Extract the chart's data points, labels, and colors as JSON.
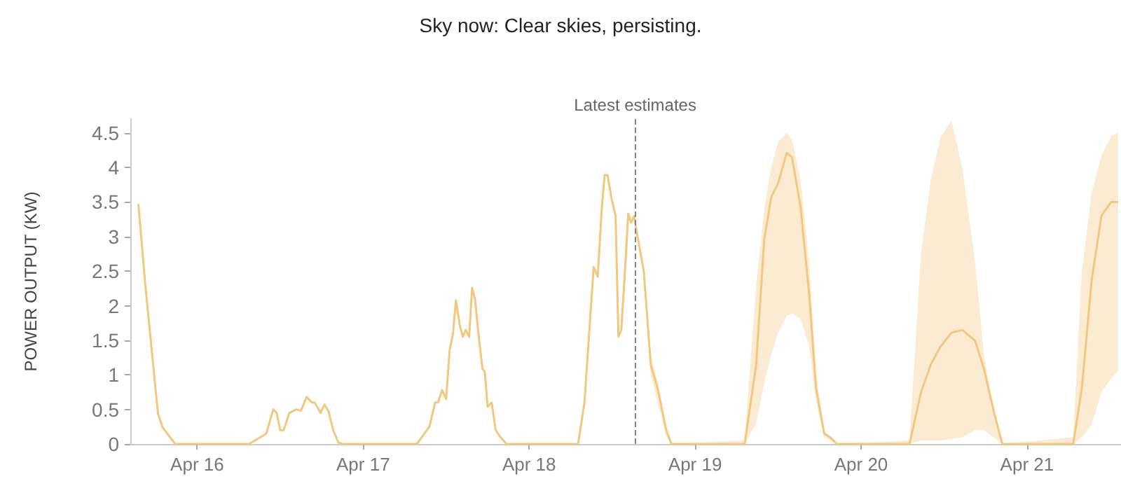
{
  "chart_data": {
    "type": "line",
    "title": "Sky now: Clear skies, persisting.",
    "ylabel": "POWER OUTPUT (KW)",
    "xlim": [
      "--04-15T14:20",
      "--04-21T13:35"
    ],
    "xticks": [
      {
        "value": "--04-16",
        "label": "Apr 16"
      },
      {
        "value": "--04-17",
        "label": "Apr 17"
      },
      {
        "value": "--04-18",
        "label": "Apr 18"
      },
      {
        "value": "--04-19",
        "label": "Apr 19"
      },
      {
        "value": "--04-20",
        "label": "Apr 20"
      },
      {
        "value": "--04-21",
        "label": "Apr 21"
      }
    ],
    "ylim": [
      0,
      4.7
    ],
    "yticks": [
      0,
      0.5,
      1,
      1.5,
      2,
      2.5,
      3,
      3.5,
      4,
      4.5
    ],
    "grid": false,
    "marker": "none",
    "ref_lines": [
      {
        "axis": "x",
        "value": "--04-18T15:20",
        "label": "Latest estimates",
        "color": "#888888",
        "line_style": "dashed"
      }
    ],
    "series": [
      {
        "color": "#f2c77e",
        "x": [
          "--04-15T15:30",
          "--04-15T16:30",
          "--04-15T18:20",
          "--04-15T19:00",
          "--04-15T20:50",
          "--04-16T07:30",
          "--04-16T10:00",
          "--04-16T11:00",
          "--04-16T11:30",
          "--04-16T12:00",
          "--04-16T12:30",
          "--04-16T13:20",
          "--04-16T14:20",
          "--04-16T15:00",
          "--04-16T15:50",
          "--04-16T16:35",
          "--04-16T17:00",
          "--04-16T17:50",
          "--04-16T18:25",
          "--04-16T19:00",
          "--04-16T19:40",
          "--04-16T20:25",
          "--04-16T21:00",
          "--04-17T07:45",
          "--04-17T09:35",
          "--04-17T10:25",
          "--04-17T10:50",
          "--04-17T11:25",
          "--04-17T12:00",
          "--04-17T12:30",
          "--04-17T13:00",
          "--04-17T13:25",
          "--04-17T14:00",
          "--04-17T14:25",
          "--04-17T14:50",
          "--04-17T15:20",
          "--04-17T15:45",
          "--04-17T16:10",
          "--04-17T16:40",
          "--04-17T17:15",
          "--04-17T17:35",
          "--04-17T18:00",
          "--04-17T18:35",
          "--04-17T19:10",
          "--04-17T19:50",
          "--04-17T20:45",
          "--04-18T07:05",
          "--04-18T08:00",
          "--04-18T09:20",
          "--04-18T09:55",
          "--04-18T10:30",
          "--04-18T10:55",
          "--04-18T11:20",
          "--04-18T11:55",
          "--04-18T12:30",
          "--04-18T12:55",
          "--04-18T13:20",
          "--04-18T13:55",
          "--04-18T14:20",
          "--04-18T14:45",
          "--04-18T15:10",
          "--04-18T15:30",
          "--04-18T16:35",
          "--04-18T17:35",
          "--04-18T18:35",
          "--04-18T19:50",
          "--04-18T20:35",
          "--04-19T07:10",
          "--04-19T08:50",
          "--04-19T10:00",
          "--04-19T11:00",
          "--04-19T12:00",
          "--04-19T13:15",
          "--04-19T14:00",
          "--04-19T15:15",
          "--04-19T16:30",
          "--04-19T17:30",
          "--04-19T18:40",
          "--04-19T19:30",
          "--04-19T20:30",
          "--04-20T07:00",
          "--04-20T08:40",
          "--04-20T10:05",
          "--04-20T11:30",
          "--04-20T13:05",
          "--04-20T14:40",
          "--04-20T16:30",
          "--04-20T17:45",
          "--04-20T19:10",
          "--04-20T20:25",
          "--04-21T06:40",
          "--04-21T07:55",
          "--04-21T09:20",
          "--04-21T10:45",
          "--04-21T12:10",
          "--04-21T13:10"
        ],
        "values": [
          3.47,
          2.3,
          0.44,
          0.24,
          0,
          0,
          0.15,
          0.5,
          0.45,
          0.2,
          0.2,
          0.45,
          0.5,
          0.48,
          0.68,
          0.6,
          0.6,
          0.45,
          0.57,
          0.47,
          0.2,
          0.02,
          0,
          0,
          0.25,
          0.6,
          0.6,
          0.78,
          0.65,
          1.35,
          1.6,
          2.08,
          1.7,
          1.55,
          1.65,
          1.55,
          2.26,
          2.1,
          1.6,
          1.09,
          1.05,
          0.54,
          0.6,
          0.2,
          0.1,
          0,
          0,
          0.6,
          2.56,
          2.42,
          3.4,
          3.89,
          3.89,
          3.55,
          3.3,
          1.55,
          1.65,
          2.6,
          3.33,
          3.2,
          3.3,
          3.1,
          2.5,
          1.15,
          0.8,
          0.2,
          0,
          0,
          1.15,
          2.96,
          3.57,
          3.77,
          4.21,
          4.15,
          3.43,
          2.16,
          0.8,
          0.15,
          0.1,
          0,
          0,
          0.75,
          1.15,
          1.41,
          1.61,
          1.65,
          1.49,
          1.09,
          0.48,
          0,
          0,
          0.8,
          2.36,
          3.3,
          3.5,
          3.5
        ],
        "lower": [
          null,
          null,
          null,
          null,
          null,
          null,
          null,
          null,
          null,
          null,
          null,
          null,
          null,
          null,
          null,
          null,
          null,
          null,
          null,
          null,
          null,
          null,
          null,
          null,
          null,
          null,
          null,
          null,
          null,
          null,
          null,
          null,
          null,
          null,
          null,
          null,
          null,
          null,
          null,
          null,
          null,
          null,
          null,
          null,
          null,
          null,
          null,
          null,
          null,
          null,
          null,
          null,
          null,
          null,
          null,
          null,
          null,
          null,
          null,
          null,
          null,
          3.1,
          2.5,
          1.0,
          0.6,
          0.1,
          0,
          0,
          0.3,
          0.88,
          1.29,
          1.61,
          1.85,
          1.89,
          1.81,
          1.41,
          0.6,
          0.1,
          0.05,
          0,
          0,
          0.05,
          0.05,
          0.05,
          0.07,
          0.1,
          0.2,
          0.2,
          0.1,
          0,
          0,
          0.1,
          0.28,
          0.75,
          0.95,
          1.05
        ],
        "upper": [
          null,
          null,
          null,
          null,
          null,
          null,
          null,
          null,
          null,
          null,
          null,
          null,
          null,
          null,
          null,
          null,
          null,
          null,
          null,
          null,
          null,
          null,
          null,
          null,
          null,
          null,
          null,
          null,
          null,
          null,
          null,
          null,
          null,
          null,
          null,
          null,
          null,
          null,
          null,
          null,
          null,
          null,
          null,
          null,
          null,
          null,
          null,
          null,
          null,
          null,
          null,
          null,
          null,
          null,
          null,
          null,
          null,
          null,
          null,
          null,
          null,
          3.1,
          2.5,
          1.3,
          0.9,
          0.25,
          0,
          0.05,
          2.3,
          3.4,
          4.0,
          4.37,
          4.5,
          4.4,
          3.83,
          2.62,
          1.0,
          0.2,
          0.1,
          0,
          0.05,
          2.76,
          3.83,
          4.44,
          4.68,
          3.97,
          2.62,
          1.3,
          0.5,
          0,
          0.1,
          2.5,
          3.63,
          4.17,
          4.45,
          4.5
        ]
      }
    ]
  }
}
